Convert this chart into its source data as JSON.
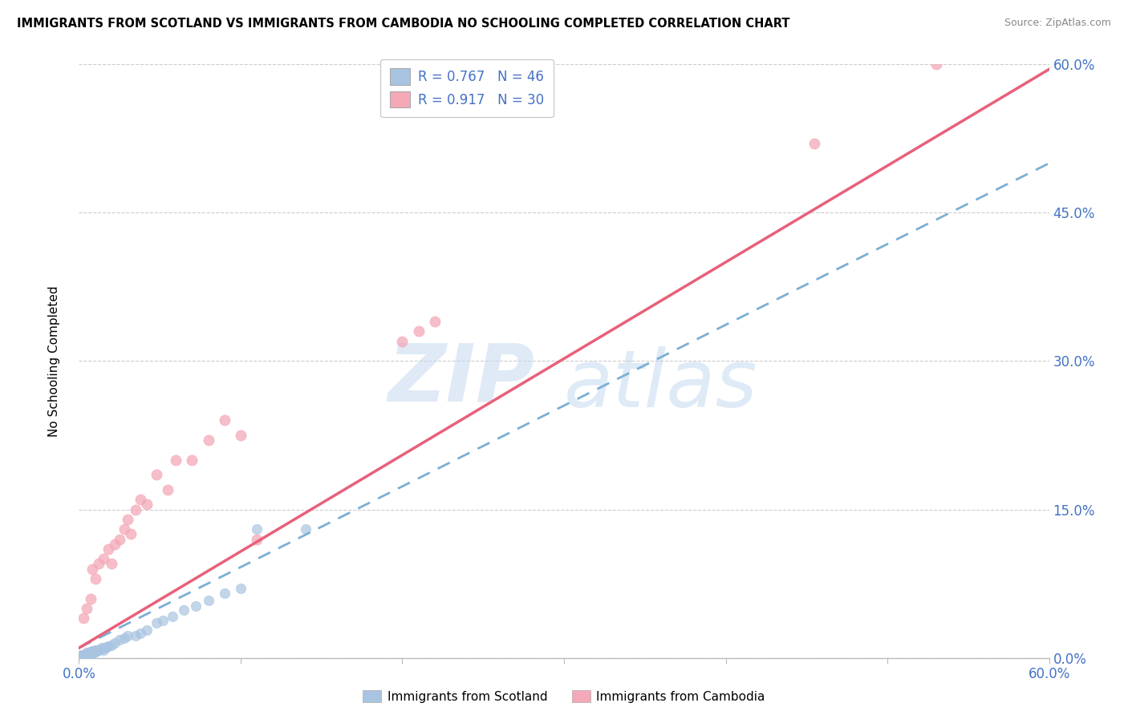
{
  "title": "IMMIGRANTS FROM SCOTLAND VS IMMIGRANTS FROM CAMBODIA NO SCHOOLING COMPLETED CORRELATION CHART",
  "source": "Source: ZipAtlas.com",
  "ylabel": "No Schooling Completed",
  "xlabel_scotland": "Immigrants from Scotland",
  "xlabel_cambodia": "Immigrants from Cambodia",
  "xlim": [
    0,
    0.6
  ],
  "ylim": [
    0,
    0.6
  ],
  "scotland_R": 0.767,
  "scotland_N": 46,
  "cambodia_R": 0.917,
  "cambodia_N": 30,
  "scotland_color": "#a8c4e0",
  "cambodia_color": "#f4a8b8",
  "scotland_line_color": "#7bafd4",
  "cambodia_line_color": "#e8607a",
  "legend_R_color": "#4472c4",
  "watermark_zip_color": "#c8daf0",
  "watermark_atlas_color": "#b0ccec",
  "scotland_line": [
    0.0,
    0.01,
    0.6,
    0.5
  ],
  "cambodia_line": [
    0.0,
    0.01,
    0.6,
    0.595
  ],
  "scotland_points": [
    [
      0.001,
      0.001
    ],
    [
      0.001,
      0.002
    ],
    [
      0.002,
      0.001
    ],
    [
      0.002,
      0.003
    ],
    [
      0.003,
      0.002
    ],
    [
      0.003,
      0.003
    ],
    [
      0.004,
      0.002
    ],
    [
      0.004,
      0.004
    ],
    [
      0.005,
      0.003
    ],
    [
      0.005,
      0.005
    ],
    [
      0.006,
      0.003
    ],
    [
      0.006,
      0.005
    ],
    [
      0.007,
      0.004
    ],
    [
      0.007,
      0.006
    ],
    [
      0.008,
      0.005
    ],
    [
      0.008,
      0.007
    ],
    [
      0.009,
      0.005
    ],
    [
      0.009,
      0.007
    ],
    [
      0.01,
      0.006
    ],
    [
      0.01,
      0.008
    ],
    [
      0.011,
      0.007
    ],
    [
      0.012,
      0.008
    ],
    [
      0.013,
      0.009
    ],
    [
      0.014,
      0.01
    ],
    [
      0.015,
      0.008
    ],
    [
      0.016,
      0.01
    ],
    [
      0.017,
      0.011
    ],
    [
      0.018,
      0.012
    ],
    [
      0.02,
      0.013
    ],
    [
      0.022,
      0.015
    ],
    [
      0.025,
      0.018
    ],
    [
      0.028,
      0.02
    ],
    [
      0.03,
      0.022
    ],
    [
      0.035,
      0.022
    ],
    [
      0.038,
      0.025
    ],
    [
      0.042,
      0.028
    ],
    [
      0.048,
      0.035
    ],
    [
      0.052,
      0.038
    ],
    [
      0.058,
      0.042
    ],
    [
      0.065,
      0.048
    ],
    [
      0.072,
      0.052
    ],
    [
      0.08,
      0.058
    ],
    [
      0.09,
      0.065
    ],
    [
      0.1,
      0.07
    ],
    [
      0.11,
      0.13
    ],
    [
      0.14,
      0.13
    ]
  ],
  "cambodia_points": [
    [
      0.003,
      0.04
    ],
    [
      0.005,
      0.05
    ],
    [
      0.007,
      0.06
    ],
    [
      0.008,
      0.09
    ],
    [
      0.01,
      0.08
    ],
    [
      0.012,
      0.095
    ],
    [
      0.015,
      0.1
    ],
    [
      0.018,
      0.11
    ],
    [
      0.02,
      0.095
    ],
    [
      0.022,
      0.115
    ],
    [
      0.025,
      0.12
    ],
    [
      0.028,
      0.13
    ],
    [
      0.03,
      0.14
    ],
    [
      0.032,
      0.125
    ],
    [
      0.035,
      0.15
    ],
    [
      0.038,
      0.16
    ],
    [
      0.042,
      0.155
    ],
    [
      0.048,
      0.185
    ],
    [
      0.055,
      0.17
    ],
    [
      0.06,
      0.2
    ],
    [
      0.07,
      0.2
    ],
    [
      0.08,
      0.22
    ],
    [
      0.09,
      0.24
    ],
    [
      0.1,
      0.225
    ],
    [
      0.11,
      0.12
    ],
    [
      0.2,
      0.32
    ],
    [
      0.21,
      0.33
    ],
    [
      0.22,
      0.34
    ],
    [
      0.455,
      0.52
    ],
    [
      0.53,
      0.6
    ]
  ]
}
